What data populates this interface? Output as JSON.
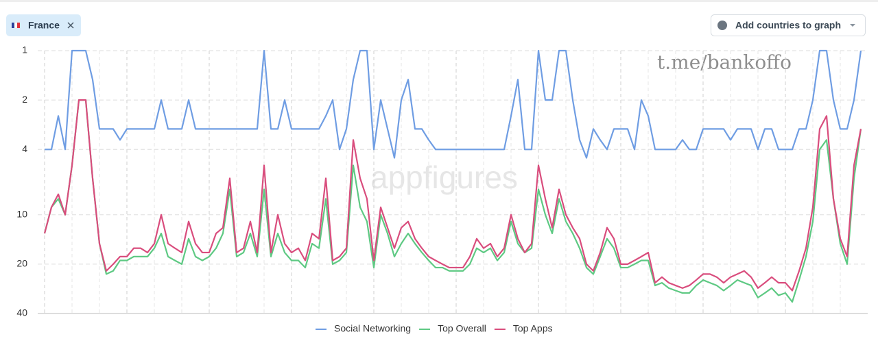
{
  "header": {
    "country": "France",
    "button": "Add countries to graph"
  },
  "watermarks": [
    "t.me/bankoffo",
    "appfigures"
  ],
  "chart_data": {
    "type": "line",
    "y_scale": "log",
    "y_reversed": true,
    "grid": true,
    "ylim": [
      1,
      40
    ],
    "yticks": [
      1,
      2,
      4,
      10,
      20,
      40
    ],
    "legend": "bottom",
    "series": [
      {
        "name": "Social Networking",
        "color": "#6f9de3",
        "values": [
          4,
          4,
          2.5,
          4,
          1,
          1,
          1,
          1.5,
          3,
          3,
          3,
          3.5,
          3,
          3,
          3,
          3,
          3,
          2,
          3,
          3,
          3,
          2,
          3,
          3,
          3,
          3,
          3,
          3,
          3,
          3,
          3,
          3,
          1,
          3,
          3,
          2,
          3,
          3,
          3,
          3,
          3,
          2.5,
          2,
          4,
          3,
          1.5,
          1,
          1,
          4,
          2,
          3,
          4.5,
          2,
          1.5,
          3,
          3,
          3.5,
          4,
          4,
          4,
          4,
          4,
          4,
          4,
          4,
          4,
          4,
          4,
          2.5,
          1.5,
          4,
          4,
          1,
          2,
          2,
          1,
          1,
          2,
          3.5,
          4.5,
          3,
          3.5,
          4,
          3,
          3,
          3,
          4,
          2,
          2.5,
          4,
          4,
          4,
          4,
          3.5,
          4,
          4,
          3,
          3,
          3,
          3,
          3.5,
          3,
          3,
          3,
          4,
          3,
          3,
          4,
          4,
          4,
          3,
          3,
          2,
          1,
          1,
          2,
          3,
          3,
          2,
          1
        ]
      },
      {
        "name": "Top Overall",
        "color": "#5ec983",
        "values": [
          13,
          9,
          8,
          10,
          5,
          2,
          2,
          6,
          15,
          23,
          22,
          19,
          19,
          18,
          18,
          18,
          16,
          13,
          18,
          19,
          20,
          14,
          18,
          19,
          18,
          16,
          13,
          7,
          18,
          17,
          13,
          18,
          7,
          18,
          13,
          17,
          19,
          19,
          21,
          15,
          16,
          8,
          20,
          19,
          17,
          5,
          9,
          11,
          21,
          10,
          13,
          18,
          15,
          13,
          15,
          17,
          19,
          21,
          21,
          22,
          22,
          22,
          20,
          16,
          17,
          16,
          19,
          17,
          11,
          15,
          17,
          16,
          7,
          10,
          13,
          8,
          11,
          13,
          16,
          21,
          23,
          18,
          14,
          16,
          21,
          21,
          20,
          19,
          19,
          27,
          26,
          28,
          29,
          30,
          30,
          27,
          25,
          26,
          27,
          29,
          27,
          25,
          26,
          27,
          32,
          30,
          28,
          31,
          30,
          34,
          25,
          18,
          11,
          4,
          3.5,
          8,
          15,
          20,
          6,
          3
        ]
      },
      {
        "name": "Top Apps",
        "color": "#d94d7d",
        "values": [
          13,
          9,
          7.5,
          10,
          5,
          2,
          2,
          6,
          15,
          22,
          20,
          18,
          18,
          16,
          16,
          17,
          15,
          10,
          15,
          16,
          17,
          11,
          15,
          17,
          17,
          13,
          12,
          6,
          17,
          16,
          11,
          17,
          5,
          17,
          10,
          15,
          17,
          16,
          19,
          13,
          14,
          6,
          19,
          18,
          16,
          3.5,
          6,
          8,
          19,
          9,
          12,
          16,
          12,
          11,
          14,
          16,
          18,
          19,
          20,
          21,
          21,
          21,
          18,
          14,
          16,
          15,
          18,
          16,
          10,
          14,
          17,
          15,
          5,
          8,
          12,
          7,
          10,
          12,
          14,
          20,
          22,
          17,
          12,
          14,
          20,
          20,
          19,
          18,
          17,
          26,
          24,
          26,
          27,
          28,
          27,
          25,
          23,
          23,
          24,
          26,
          24,
          23,
          22,
          24,
          28,
          26,
          24,
          26,
          26,
          29,
          22,
          16,
          9,
          3,
          2.5,
          8,
          14,
          18,
          5,
          3
        ]
      }
    ]
  }
}
